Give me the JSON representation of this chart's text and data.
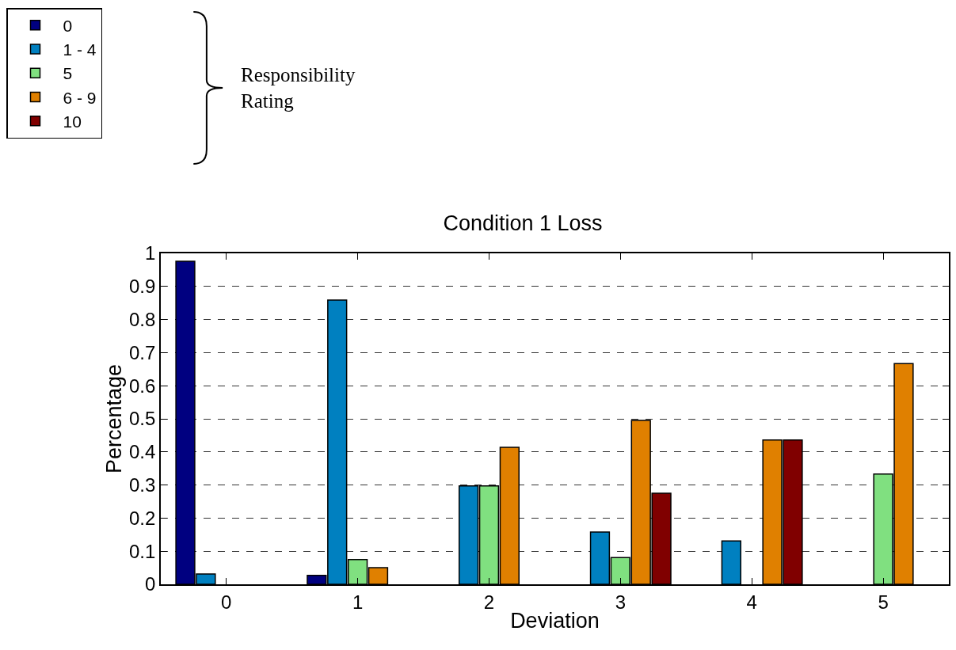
{
  "chart_data": {
    "type": "bar",
    "title": "Condition 1 Loss",
    "xlabel": "Deviation",
    "ylabel": "Percentage",
    "legend_title": "Responsibility Rating",
    "categories": [
      "0",
      "1",
      "2",
      "3",
      "4",
      "5"
    ],
    "series": [
      {
        "name": "0",
        "color": "#000080",
        "values": [
          0.976,
          0.027,
          null,
          null,
          null,
          null
        ]
      },
      {
        "name": "1 - 4",
        "color": "#0080c0",
        "values": [
          0.031,
          0.859,
          0.297,
          0.158,
          0.131,
          null
        ]
      },
      {
        "name": "5",
        "color": "#80e080",
        "values": [
          null,
          0.075,
          0.297,
          0.081,
          null,
          0.333
        ]
      },
      {
        "name": "6 - 9",
        "color": "#e08000",
        "values": [
          null,
          0.05,
          0.414,
          0.495,
          0.436,
          0.667
        ]
      },
      {
        "name": "10",
        "color": "#800000",
        "values": [
          null,
          null,
          null,
          0.275,
          0.436,
          null
        ]
      }
    ],
    "ylim": [
      0,
      1
    ],
    "yticks": [
      0,
      0.1,
      0.2,
      0.3,
      0.4,
      0.5,
      0.6,
      0.7,
      0.8,
      0.9,
      1
    ],
    "grid": "y",
    "legend": "top left"
  }
}
